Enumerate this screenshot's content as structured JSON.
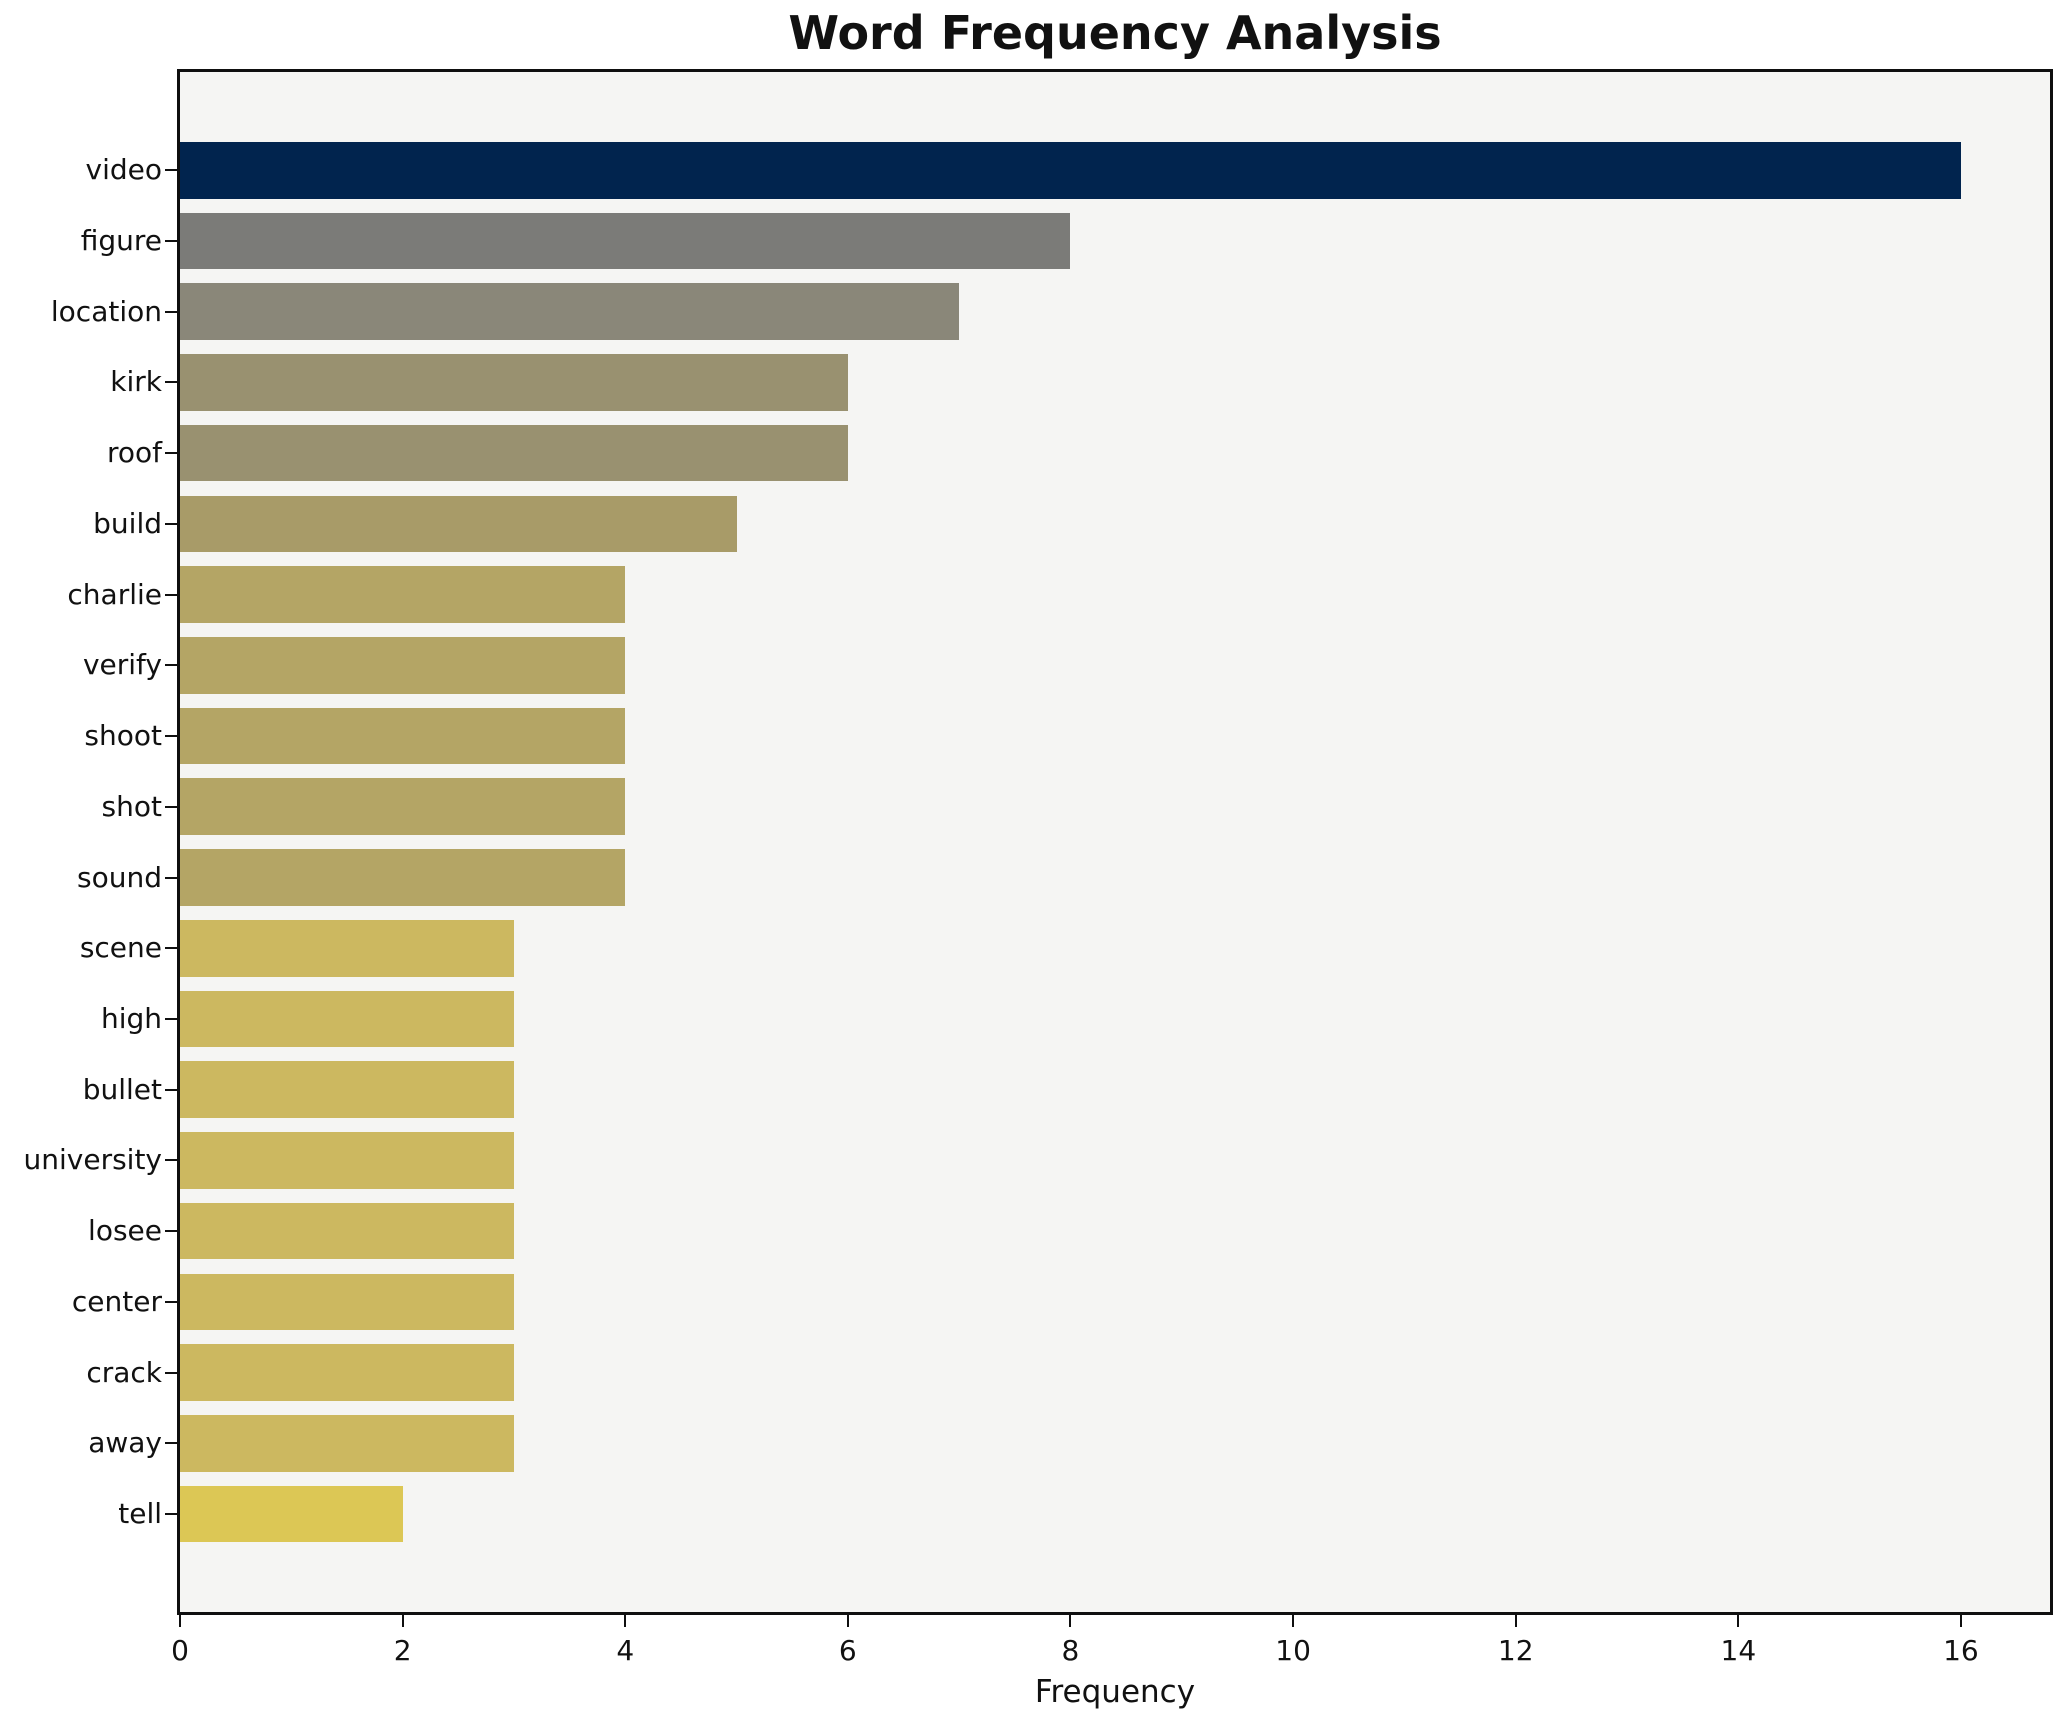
{
  "chart_data": {
    "type": "bar",
    "orientation": "horizontal",
    "title": "Word Frequency Analysis",
    "xlabel": "Frequency",
    "ylabel": "",
    "categories": [
      "video",
      "figure",
      "location",
      "kirk",
      "roof",
      "build",
      "charlie",
      "verify",
      "shoot",
      "shot",
      "sound",
      "scene",
      "high",
      "bullet",
      "university",
      "losee",
      "center",
      "crack",
      "away",
      "tell"
    ],
    "values": [
      16,
      8,
      7,
      6,
      6,
      5,
      4,
      4,
      4,
      4,
      4,
      3,
      3,
      3,
      3,
      3,
      3,
      3,
      3,
      2
    ],
    "bar_colors": [
      "#01244e",
      "#7b7b78",
      "#8a8779",
      "#999170",
      "#999170",
      "#a89b68",
      "#b4a565",
      "#b4a565",
      "#b4a565",
      "#b4a565",
      "#b4a565",
      "#ccb860",
      "#ccb860",
      "#ccb860",
      "#ccb860",
      "#ccb860",
      "#ccb860",
      "#ccb860",
      "#ccb860",
      "#dcc755"
    ],
    "xticks": [
      0,
      2,
      4,
      6,
      8,
      10,
      12,
      14,
      16
    ],
    "xlim": [
      0,
      16.8
    ],
    "grid": false,
    "legend": "none",
    "plot_background": "#f5f5f3",
    "figure_background": "#ffffff",
    "spine_color": "#0f0f0f",
    "text_color": "#111111"
  }
}
